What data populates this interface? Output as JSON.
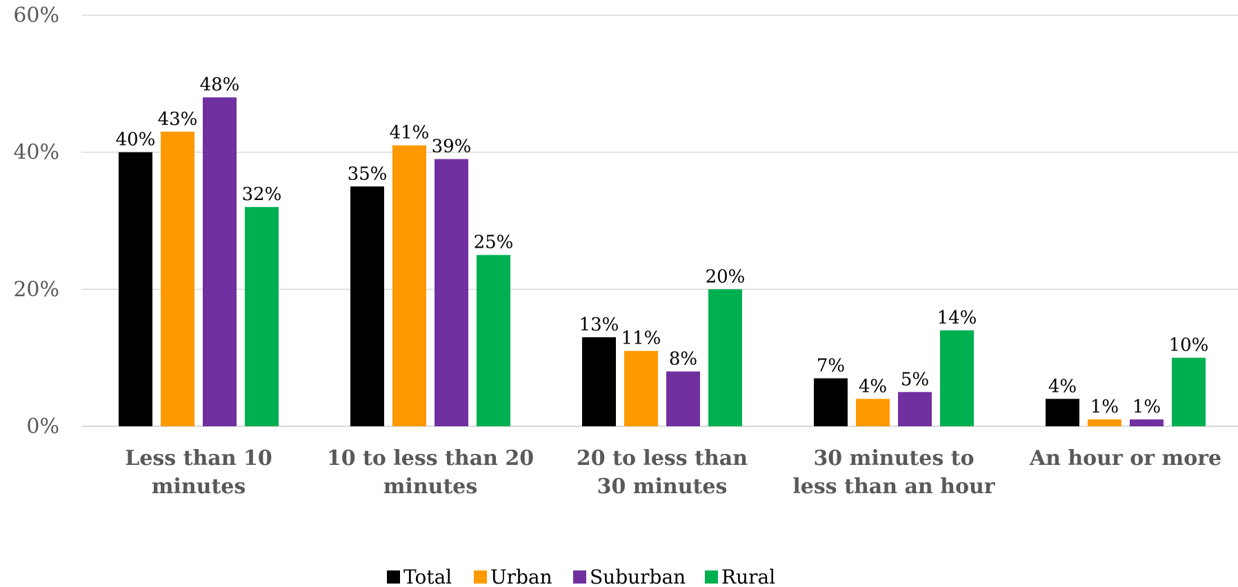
{
  "chart_data": {
    "type": "bar",
    "categories": [
      [
        "Less than 10",
        "minutes"
      ],
      [
        "10 to less than 20",
        "minutes"
      ],
      [
        "20 to less than",
        "30 minutes"
      ],
      [
        "30 minutes to",
        "less than an hour"
      ],
      [
        "An hour or more"
      ]
    ],
    "series": [
      {
        "name": "Total",
        "color": "#000000",
        "values": [
          40,
          35,
          13,
          7,
          4
        ]
      },
      {
        "name": "Urban",
        "color": "#ff9900",
        "values": [
          43,
          41,
          11,
          4,
          1
        ]
      },
      {
        "name": "Suburban",
        "color": "#7030a0",
        "values": [
          48,
          39,
          8,
          5,
          1
        ]
      },
      {
        "name": "Rural",
        "color": "#00b050",
        "values": [
          32,
          25,
          20,
          14,
          10
        ]
      }
    ],
    "ylim": [
      0,
      60
    ],
    "yticks": [
      0,
      20,
      40,
      60
    ],
    "value_suffix": "%",
    "grid": true,
    "legend_position": "bottom-center",
    "title": "",
    "xlabel": "",
    "ylabel": ""
  }
}
